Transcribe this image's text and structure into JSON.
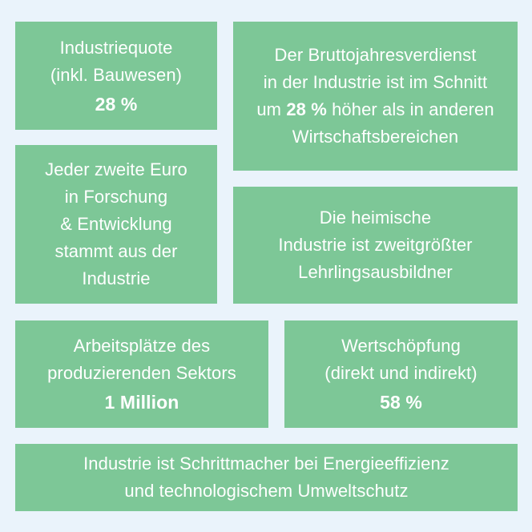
{
  "tiles": {
    "industriequote": {
      "line1": "Industriequote",
      "line2": "(inkl. Bauwesen)",
      "value": "28 %"
    },
    "bruttojahresverdienst": {
      "line1": "Der Bruttojahresverdienst",
      "line2": "in der Industrie ist im Schnitt",
      "line3_prefix": "um ",
      "line3_value": "28 %",
      "line3_suffix": " höher als in anderen",
      "line4": "Wirtschaftsbereichen"
    },
    "forschung": {
      "line1": "Jeder zweite Euro",
      "line2": "in Forschung",
      "line3": "& Entwicklung",
      "line4": "stammt aus der",
      "line5": "Industrie"
    },
    "lehrlinge": {
      "line1": "Die heimische",
      "line2": "Industrie ist zweitgrößter",
      "line3": "Lehrlingsausbildner"
    },
    "arbeitsplaetze": {
      "line1": "Arbeitsplätze des",
      "line2": "produzierenden Sektors",
      "value": "1 Million"
    },
    "wertschoepfung": {
      "line1": "Wertschöpfung",
      "line2": "(direkt und indirekt)",
      "value": "58 %"
    },
    "energie": {
      "line1": "Industrie ist Schrittmacher bei Energieeffizienz",
      "line2": "und technologischem Umweltschutz"
    }
  },
  "colors": {
    "tile_background": "#7dc797",
    "page_background": "#eaf3fb",
    "text": "#ffffff"
  }
}
